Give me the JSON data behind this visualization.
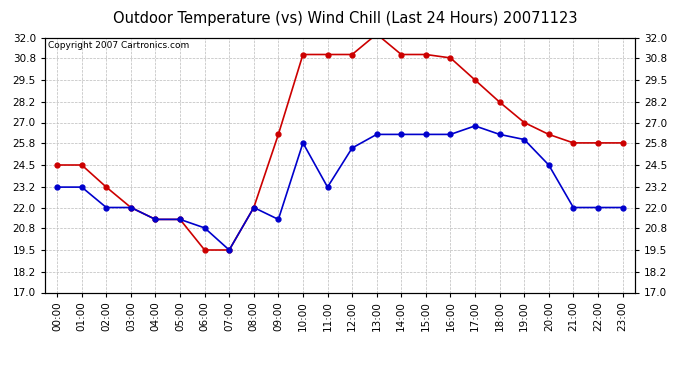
{
  "title": "Outdoor Temperature (vs) Wind Chill (Last 24 Hours) 20071123",
  "copyright": "Copyright 2007 Cartronics.com",
  "hours": [
    "00:00",
    "01:00",
    "02:00",
    "03:00",
    "04:00",
    "05:00",
    "06:00",
    "07:00",
    "08:00",
    "09:00",
    "10:00",
    "11:00",
    "12:00",
    "13:00",
    "14:00",
    "15:00",
    "16:00",
    "17:00",
    "18:00",
    "19:00",
    "20:00",
    "21:00",
    "22:00",
    "23:00"
  ],
  "temp": [
    23.2,
    23.2,
    22.0,
    22.0,
    21.3,
    21.3,
    20.8,
    19.5,
    22.0,
    21.3,
    25.8,
    23.2,
    25.5,
    26.3,
    26.3,
    26.3,
    26.3,
    26.8,
    26.3,
    26.0,
    24.5,
    22.0,
    22.0,
    22.0
  ],
  "wind_chill": [
    24.5,
    24.5,
    23.2,
    22.0,
    21.3,
    21.3,
    19.5,
    19.5,
    22.0,
    26.3,
    31.0,
    31.0,
    31.0,
    32.2,
    31.0,
    31.0,
    30.8,
    29.5,
    28.2,
    27.0,
    26.3,
    25.8,
    25.8,
    25.8
  ],
  "temp_color": "#0000cc",
  "wind_chill_color": "#cc0000",
  "bg_color": "#ffffff",
  "grid_color": "#bbbbbb",
  "ylim": [
    17.0,
    32.0
  ],
  "yticks": [
    17.0,
    18.2,
    19.5,
    20.8,
    22.0,
    23.2,
    24.5,
    25.8,
    27.0,
    28.2,
    29.5,
    30.8,
    32.0
  ],
  "title_fontsize": 10.5,
  "copyright_fontsize": 6.5,
  "tick_fontsize": 7.5,
  "marker": "o",
  "markersize": 3.5,
  "linewidth": 1.2
}
